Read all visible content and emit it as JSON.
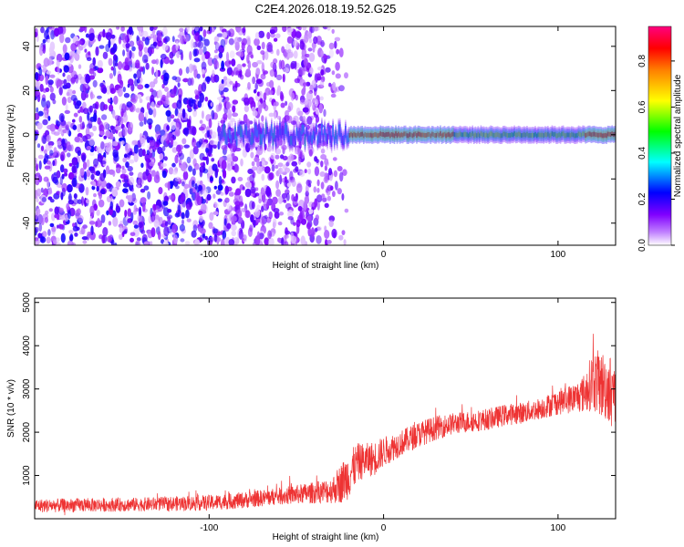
{
  "figure": {
    "title": "C2E4.2026.018.19.52.G25"
  },
  "chart_data": [
    {
      "type": "heatmap",
      "xlabel": "Height of straight line (km)",
      "ylabel": "Frequency (Hz)",
      "xlim": [
        -200,
        133
      ],
      "ylim": [
        -50,
        49
      ],
      "xticks": [
        -100,
        0,
        100
      ],
      "yticks": [
        -40,
        -20,
        0,
        20,
        40
      ],
      "colorbar": {
        "label": "Normalized spectral amplitude",
        "range": [
          0,
          0.95
        ],
        "ticks": [
          0.0,
          0.2,
          0.4,
          0.6,
          0.8
        ],
        "colormap": [
          "#ffffff",
          "#8000ff",
          "#0000ff",
          "#00ffff",
          "#00ff00",
          "#ffff00",
          "#ff8000",
          "#ff0000",
          "#ff0080"
        ]
      },
      "features": {
        "noise_region_x": [
          -200,
          -20
        ],
        "signal_line_frequency": 0,
        "signal_start_x": -95,
        "strong_signal_x": [
          -20,
          130
        ]
      }
    },
    {
      "type": "line",
      "xlabel": "Height of straight line (km)",
      "ylabel": "SNR (10 * v/v)",
      "xlim": [
        -200,
        133
      ],
      "ylim": [
        0,
        5100
      ],
      "xticks": [
        -100,
        0,
        100
      ],
      "yticks": [
        1000,
        2000,
        3000,
        4000,
        5000
      ],
      "color": "#ee3333",
      "series": [
        {
          "x": [
            -200,
            -180,
            -160,
            -140,
            -120,
            -100,
            -80,
            -60,
            -40,
            -30,
            -25,
            -20,
            -15,
            -10,
            -5,
            0,
            10,
            20,
            30,
            40,
            50,
            60,
            70,
            80,
            90,
            100,
            110,
            115,
            120,
            125,
            130,
            133
          ],
          "y": [
            300,
            310,
            320,
            330,
            350,
            370,
            430,
            520,
            600,
            650,
            800,
            1000,
            1300,
            1350,
            1400,
            1550,
            1750,
            1950,
            2100,
            2200,
            2250,
            2300,
            2400,
            2450,
            2550,
            2700,
            2800,
            2900,
            3200,
            3100,
            3000,
            2900
          ],
          "spread": [
            160,
            160,
            160,
            160,
            170,
            180,
            190,
            200,
            250,
            300,
            450,
            550,
            450,
            400,
            400,
            350,
            300,
            300,
            280,
            250,
            250,
            250,
            250,
            250,
            250,
            300,
            350,
            450,
            700,
            800,
            800,
            700
          ]
        }
      ]
    }
  ]
}
